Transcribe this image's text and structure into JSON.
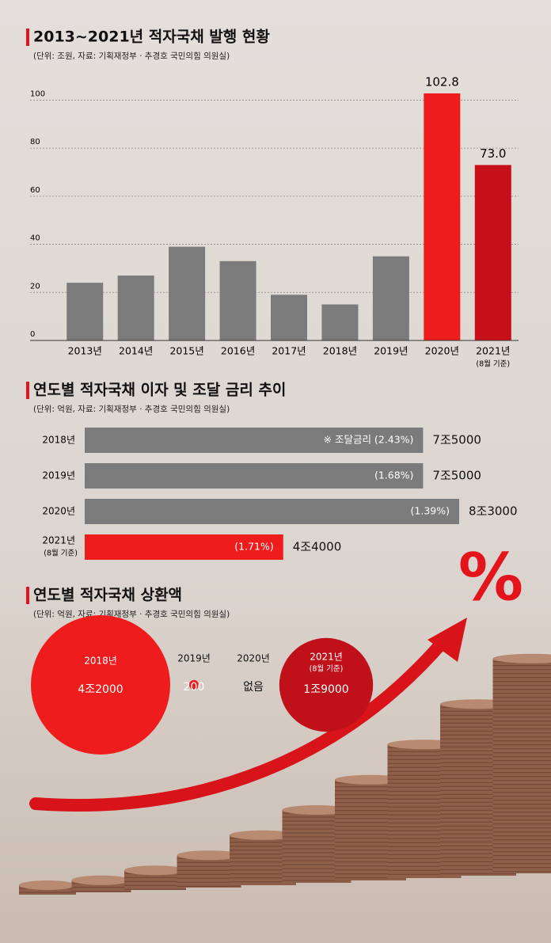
{
  "chart_data": [
    {
      "type": "bar",
      "title": "2013~2021년 적자국채 발행 현황",
      "subtitle": "(단위: 조원, 자료: 기획재정부 · 추경호 국민의힘 의원실)",
      "categories": [
        "2013년",
        "2014년",
        "2015년",
        "2016년",
        "2017년",
        "2018년",
        "2019년",
        "2020년",
        "2021년"
      ],
      "category_notes": [
        null,
        null,
        null,
        null,
        null,
        null,
        null,
        null,
        "(8월 기준)"
      ],
      "values": [
        24,
        27,
        39,
        33,
        19,
        15,
        35,
        102.8,
        73
      ],
      "value_labels": [
        null,
        null,
        null,
        null,
        null,
        null,
        null,
        "102.8",
        "73.0"
      ],
      "colors": [
        "#7b7b7b",
        "#7b7b7b",
        "#7b7b7b",
        "#7b7b7b",
        "#7b7b7b",
        "#7b7b7b",
        "#7b7b7b",
        "#ee1c1c",
        "#c70f1a"
      ],
      "ylim": [
        0,
        112
      ],
      "yticks": [
        0,
        20,
        40,
        60,
        80,
        100
      ],
      "grid": true
    },
    {
      "type": "hbar",
      "title": "연도별 적자국채 이자 및 조달 금리 추이",
      "subtitle": "(단위: 억원, 자료: 기획재정부 · 추경호 국민의힘 의원실)",
      "categories": [
        "2018년",
        "2019년",
        "2020년",
        "2021년"
      ],
      "category_notes": [
        null,
        null,
        null,
        "(8월 기준)"
      ],
      "values": [
        75000,
        75000,
        83000,
        44000
      ],
      "value_labels": [
        "7조5000",
        "7조5000",
        "8조3000",
        "4조4000"
      ],
      "rate_labels": [
        "※ 조달금리 (2.43%)",
        "(1.68%)",
        "(1.39%)",
        "(1.71%)"
      ],
      "colors": [
        "#7b7b7b",
        "#7b7b7b",
        "#7b7b7b",
        "#ee1c1c"
      ]
    },
    {
      "type": "bubble",
      "title": "연도별 적자국채 상환액",
      "subtitle": "(단위: 억원, 자료: 기획재정부 · 추경호 국민의힘 의원실)",
      "categories": [
        "2018년",
        "2019년",
        "2020년",
        "2021년"
      ],
      "category_notes": [
        null,
        null,
        null,
        "(8월 기준)"
      ],
      "values": [
        42000,
        200,
        null,
        19000
      ],
      "value_labels": [
        "4조2000",
        "200",
        "없음",
        "1조9000"
      ],
      "colors": [
        "#ee1c1c",
        "#ee1c1c",
        null,
        "#c0101a"
      ],
      "icon_text": "%"
    }
  ]
}
